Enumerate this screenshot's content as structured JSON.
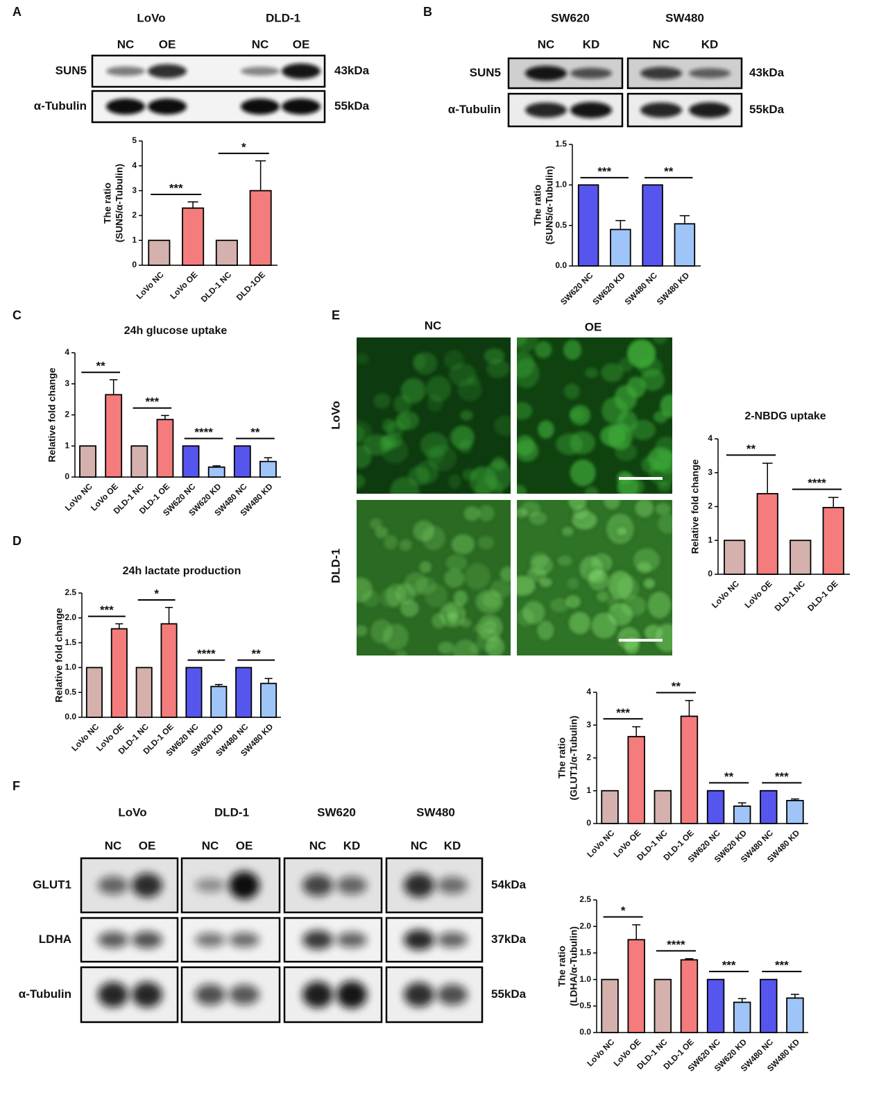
{
  "panel_letters": [
    "A",
    "B",
    "C",
    "D",
    "E",
    "F"
  ],
  "blot_a": {
    "groups": [
      "LoVo",
      "DLD-1"
    ],
    "lanes": [
      "NC",
      "OE",
      "NC",
      "OE"
    ],
    "rows": [
      "SUN5",
      "α-Tubulin"
    ],
    "sizes": [
      "43kDa",
      "55kDa"
    ]
  },
  "blot_b": {
    "groups": [
      "SW620",
      "SW480"
    ],
    "lanes": [
      "NC",
      "KD",
      "NC",
      "KD"
    ],
    "rows": [
      "SUN5",
      "α-Tubulin"
    ],
    "sizes": [
      "43kDa",
      "55kDa"
    ]
  },
  "blot_f": {
    "groups": [
      "LoVo",
      "DLD-1",
      "SW620",
      "SW480"
    ],
    "lanes": [
      "NC",
      "OE",
      "NC",
      "OE",
      "NC",
      "KD",
      "NC",
      "KD"
    ],
    "rows": [
      "GLUT1",
      "LDHA",
      "α-Tubulin"
    ],
    "sizes": [
      "54kDa",
      "37kDa",
      "55kDa"
    ]
  },
  "fluorescence": {
    "columns": [
      "NC",
      "OE"
    ],
    "rows": [
      "LoVo",
      "DLD-1"
    ]
  },
  "chart_data": [
    {
      "type": "bar",
      "y_label": [
        "The ratio",
        "(SUN5/α-Tubulin)"
      ],
      "categories": [
        "LoVo NC",
        "LoVo OE",
        "DLD-1 NC",
        "DLD-1OE"
      ],
      "values": [
        1,
        2.3,
        1,
        3.0
      ],
      "errors": [
        0,
        0.25,
        0,
        1.2
      ],
      "colors": [
        "#d4b1ad",
        "#f47c7c",
        "#d4b1ad",
        "#f47c7c"
      ],
      "significance": [
        "***",
        "*"
      ],
      "ylim": [
        0,
        5
      ],
      "yticks": [
        0,
        1,
        2,
        3,
        4,
        5
      ]
    },
    {
      "type": "bar",
      "y_label": [
        "The ratio",
        "(SUN5/α-Tubulin)"
      ],
      "categories": [
        "SW620 NC",
        "SW620 KD",
        "SW480 NC",
        "SW480 KD"
      ],
      "values": [
        1,
        0.45,
        1,
        0.52
      ],
      "errors": [
        0,
        0.11,
        0,
        0.1
      ],
      "colors": [
        "#5656ee",
        "#9fc5f8",
        "#5656ee",
        "#9fc5f8"
      ],
      "significance": [
        "***",
        "**"
      ],
      "ylim": [
        0,
        1.5
      ],
      "yticks": [
        {
          "value": 0,
          "label": "0.0"
        },
        0.5,
        {
          "value": 1,
          "label": "1.0"
        },
        1.5
      ]
    },
    {
      "type": "bar",
      "title": "24h glucose uptake",
      "y_label": [
        "Relative fold change"
      ],
      "categories": [
        "LoVo NC",
        "LoVo OE",
        "DLD-1 NC",
        "DLD-1 OE",
        "SW620 NC",
        "SW620 KD",
        "SW480 NC",
        "SW480 KD"
      ],
      "values": [
        1,
        2.65,
        1,
        1.85,
        1,
        0.32,
        1,
        0.5
      ],
      "errors": [
        0,
        0.48,
        0,
        0.13,
        0,
        0.04,
        0,
        0.12
      ],
      "colors": [
        "#d4b1ad",
        "#f47c7c",
        "#d4b1ad",
        "#f47c7c",
        "#5656ee",
        "#9fc5f8",
        "#5656ee",
        "#9fc5f8"
      ],
      "significance": [
        "**",
        "***",
        "****",
        "**"
      ],
      "ylim": [
        0,
        4
      ],
      "yticks": [
        0,
        1,
        2,
        3,
        4
      ]
    },
    {
      "type": "bar",
      "title": "24h lactate production",
      "y_label": [
        "Relative fold change"
      ],
      "categories": [
        "LoVo NC",
        "LoVo OE",
        "DLD-1 NC",
        "DLD-1 OE",
        "SW620 NC",
        "SW620 KD",
        "SW480 NC",
        "SW480 KD"
      ],
      "values": [
        1,
        1.78,
        1,
        1.88,
        1,
        0.62,
        1,
        0.68
      ],
      "errors": [
        0,
        0.1,
        0,
        0.33,
        0,
        0.04,
        0,
        0.1
      ],
      "colors": [
        "#d4b1ad",
        "#f47c7c",
        "#d4b1ad",
        "#f47c7c",
        "#5656ee",
        "#9fc5f8",
        "#5656ee",
        "#9fc5f8"
      ],
      "significance": [
        "***",
        "*",
        "****",
        "**"
      ],
      "ylim": [
        0,
        2.5
      ],
      "yticks": [
        {
          "value": 0,
          "label": "0.0"
        },
        0.5,
        {
          "value": 1,
          "label": "1.0"
        },
        1.5,
        {
          "value": 2,
          "label": "2.0"
        },
        2.5
      ]
    },
    {
      "type": "bar",
      "title": "2-NBDG uptake",
      "y_label": [
        "Relative fold change"
      ],
      "categories": [
        "LoVo NC",
        "LoVo OE",
        "DLD-1 NC",
        "DLD-1 OE"
      ],
      "values": [
        1,
        2.38,
        1,
        1.97
      ],
      "errors": [
        0,
        0.9,
        0,
        0.3
      ],
      "colors": [
        "#d4b1ad",
        "#f47c7c",
        "#d4b1ad",
        "#f47c7c"
      ],
      "significance": [
        "**",
        "****"
      ],
      "ylim": [
        0,
        4
      ],
      "yticks": [
        0,
        1,
        2,
        3,
        4
      ]
    },
    {
      "type": "bar",
      "y_label": [
        "The ratio",
        "(GLUT1/α-Tubulin)"
      ],
      "categories": [
        "LoVo NC",
        "LoVo OE",
        "DLD-1 NC",
        "DLD-1 OE",
        "SW620 NC",
        "SW620 KD",
        "SW480 NC",
        "SW480 KD"
      ],
      "values": [
        1,
        2.65,
        1,
        3.27,
        1,
        0.53,
        1,
        0.7
      ],
      "errors": [
        0,
        0.3,
        0,
        0.48,
        0,
        0.1,
        0,
        0.05
      ],
      "colors": [
        "#d4b1ad",
        "#f47c7c",
        "#d4b1ad",
        "#f47c7c",
        "#5656ee",
        "#9fc5f8",
        "#5656ee",
        "#9fc5f8"
      ],
      "significance": [
        "***",
        "**",
        "**",
        "***"
      ],
      "ylim": [
        0,
        4
      ],
      "yticks": [
        0,
        1,
        2,
        3,
        4
      ]
    },
    {
      "type": "bar",
      "y_label": [
        "The ratio",
        "(LDHA/α-Tubulin)"
      ],
      "categories": [
        "LoVo NC",
        "LoVo OE",
        "DLD-1 NC",
        "DLD-1 OE",
        "SW620 NC",
        "SW620 KD",
        "SW480 NC",
        "SW480 KD"
      ],
      "values": [
        1,
        1.75,
        1,
        1.37,
        1,
        0.57,
        1,
        0.65
      ],
      "errors": [
        0,
        0.28,
        0,
        0.02,
        0,
        0.07,
        0,
        0.07
      ],
      "colors": [
        "#d4b1ad",
        "#f47c7c",
        "#d4b1ad",
        "#f47c7c",
        "#5656ee",
        "#9fc5f8",
        "#5656ee",
        "#9fc5f8"
      ],
      "significance": [
        "*",
        "****",
        "***",
        "***"
      ],
      "ylim": [
        0,
        2.5
      ],
      "yticks": [
        {
          "value": 0,
          "label": "0.0"
        },
        0.5,
        {
          "value": 1,
          "label": "1.0"
        },
        1.5,
        {
          "value": 2,
          "label": "2.0"
        },
        2.5
      ]
    }
  ]
}
